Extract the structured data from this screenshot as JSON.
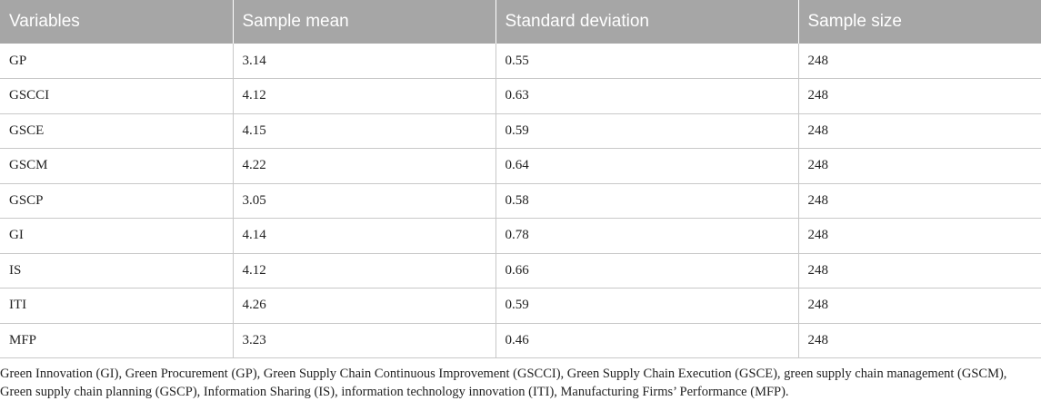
{
  "table": {
    "headers": [
      "Variables",
      "Sample mean",
      "Standard deviation",
      "Sample size"
    ],
    "rows": [
      [
        "GP",
        "3.14",
        "0.55",
        "248"
      ],
      [
        "GSCCI",
        "4.12",
        "0.63",
        "248"
      ],
      [
        "GSCE",
        "4.15",
        "0.59",
        "248"
      ],
      [
        "GSCM",
        "4.22",
        "0.64",
        "248"
      ],
      [
        "GSCP",
        "3.05",
        "0.58",
        "248"
      ],
      [
        "GI",
        "4.14",
        "0.78",
        "248"
      ],
      [
        "IS",
        "4.12",
        "0.66",
        "248"
      ],
      [
        "ITI",
        "4.26",
        "0.59",
        "248"
      ],
      [
        "MFP",
        "3.23",
        "0.46",
        "248"
      ]
    ]
  },
  "footnote": {
    "line1": "Green Innovation (GI), Green Procurement (GP), Green Supply Chain Continuous Improvement (GSCCI), Green Supply Chain Execution (GSCE), green supply chain management (GSCM),",
    "line2": "Green supply chain planning (GSCP), Information Sharing (IS), information technology innovation (ITI), Manufacturing Firms’ Performance (MFP)."
  },
  "colors": {
    "header_bg": "#a6a6a6",
    "header_text": "#ffffff",
    "grid_line": "#c8c8c8",
    "body_text": "#222222"
  }
}
